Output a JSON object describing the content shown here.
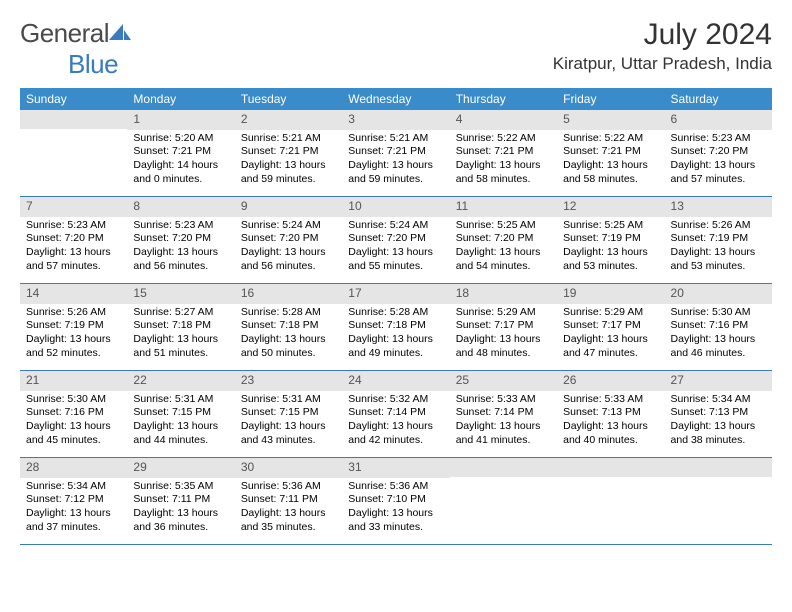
{
  "brand": {
    "part1": "General",
    "part2": "Blue",
    "color_gray": "#4a4a4a",
    "color_blue": "#3a7bbf"
  },
  "title": "July 2024",
  "location": "Kiratpur, Uttar Pradesh, India",
  "header_bg": "#3a8bc9",
  "header_fg": "#ffffff",
  "daynum_bg": "#e5e5e5",
  "daynum_fg": "#555555",
  "border_color": "#3a7bbf",
  "text_color": "#000000",
  "day_names": [
    "Sunday",
    "Monday",
    "Tuesday",
    "Wednesday",
    "Thursday",
    "Friday",
    "Saturday"
  ],
  "weeks": [
    [
      {
        "n": "",
        "sunrise": "",
        "sunset": "",
        "daylight": ""
      },
      {
        "n": "1",
        "sunrise": "Sunrise: 5:20 AM",
        "sunset": "Sunset: 7:21 PM",
        "daylight": "Daylight: 14 hours and 0 minutes."
      },
      {
        "n": "2",
        "sunrise": "Sunrise: 5:21 AM",
        "sunset": "Sunset: 7:21 PM",
        "daylight": "Daylight: 13 hours and 59 minutes."
      },
      {
        "n": "3",
        "sunrise": "Sunrise: 5:21 AM",
        "sunset": "Sunset: 7:21 PM",
        "daylight": "Daylight: 13 hours and 59 minutes."
      },
      {
        "n": "4",
        "sunrise": "Sunrise: 5:22 AM",
        "sunset": "Sunset: 7:21 PM",
        "daylight": "Daylight: 13 hours and 58 minutes."
      },
      {
        "n": "5",
        "sunrise": "Sunrise: 5:22 AM",
        "sunset": "Sunset: 7:21 PM",
        "daylight": "Daylight: 13 hours and 58 minutes."
      },
      {
        "n": "6",
        "sunrise": "Sunrise: 5:23 AM",
        "sunset": "Sunset: 7:20 PM",
        "daylight": "Daylight: 13 hours and 57 minutes."
      }
    ],
    [
      {
        "n": "7",
        "sunrise": "Sunrise: 5:23 AM",
        "sunset": "Sunset: 7:20 PM",
        "daylight": "Daylight: 13 hours and 57 minutes."
      },
      {
        "n": "8",
        "sunrise": "Sunrise: 5:23 AM",
        "sunset": "Sunset: 7:20 PM",
        "daylight": "Daylight: 13 hours and 56 minutes."
      },
      {
        "n": "9",
        "sunrise": "Sunrise: 5:24 AM",
        "sunset": "Sunset: 7:20 PM",
        "daylight": "Daylight: 13 hours and 56 minutes."
      },
      {
        "n": "10",
        "sunrise": "Sunrise: 5:24 AM",
        "sunset": "Sunset: 7:20 PM",
        "daylight": "Daylight: 13 hours and 55 minutes."
      },
      {
        "n": "11",
        "sunrise": "Sunrise: 5:25 AM",
        "sunset": "Sunset: 7:20 PM",
        "daylight": "Daylight: 13 hours and 54 minutes."
      },
      {
        "n": "12",
        "sunrise": "Sunrise: 5:25 AM",
        "sunset": "Sunset: 7:19 PM",
        "daylight": "Daylight: 13 hours and 53 minutes."
      },
      {
        "n": "13",
        "sunrise": "Sunrise: 5:26 AM",
        "sunset": "Sunset: 7:19 PM",
        "daylight": "Daylight: 13 hours and 53 minutes."
      }
    ],
    [
      {
        "n": "14",
        "sunrise": "Sunrise: 5:26 AM",
        "sunset": "Sunset: 7:19 PM",
        "daylight": "Daylight: 13 hours and 52 minutes."
      },
      {
        "n": "15",
        "sunrise": "Sunrise: 5:27 AM",
        "sunset": "Sunset: 7:18 PM",
        "daylight": "Daylight: 13 hours and 51 minutes."
      },
      {
        "n": "16",
        "sunrise": "Sunrise: 5:28 AM",
        "sunset": "Sunset: 7:18 PM",
        "daylight": "Daylight: 13 hours and 50 minutes."
      },
      {
        "n": "17",
        "sunrise": "Sunrise: 5:28 AM",
        "sunset": "Sunset: 7:18 PM",
        "daylight": "Daylight: 13 hours and 49 minutes."
      },
      {
        "n": "18",
        "sunrise": "Sunrise: 5:29 AM",
        "sunset": "Sunset: 7:17 PM",
        "daylight": "Daylight: 13 hours and 48 minutes."
      },
      {
        "n": "19",
        "sunrise": "Sunrise: 5:29 AM",
        "sunset": "Sunset: 7:17 PM",
        "daylight": "Daylight: 13 hours and 47 minutes."
      },
      {
        "n": "20",
        "sunrise": "Sunrise: 5:30 AM",
        "sunset": "Sunset: 7:16 PM",
        "daylight": "Daylight: 13 hours and 46 minutes."
      }
    ],
    [
      {
        "n": "21",
        "sunrise": "Sunrise: 5:30 AM",
        "sunset": "Sunset: 7:16 PM",
        "daylight": "Daylight: 13 hours and 45 minutes."
      },
      {
        "n": "22",
        "sunrise": "Sunrise: 5:31 AM",
        "sunset": "Sunset: 7:15 PM",
        "daylight": "Daylight: 13 hours and 44 minutes."
      },
      {
        "n": "23",
        "sunrise": "Sunrise: 5:31 AM",
        "sunset": "Sunset: 7:15 PM",
        "daylight": "Daylight: 13 hours and 43 minutes."
      },
      {
        "n": "24",
        "sunrise": "Sunrise: 5:32 AM",
        "sunset": "Sunset: 7:14 PM",
        "daylight": "Daylight: 13 hours and 42 minutes."
      },
      {
        "n": "25",
        "sunrise": "Sunrise: 5:33 AM",
        "sunset": "Sunset: 7:14 PM",
        "daylight": "Daylight: 13 hours and 41 minutes."
      },
      {
        "n": "26",
        "sunrise": "Sunrise: 5:33 AM",
        "sunset": "Sunset: 7:13 PM",
        "daylight": "Daylight: 13 hours and 40 minutes."
      },
      {
        "n": "27",
        "sunrise": "Sunrise: 5:34 AM",
        "sunset": "Sunset: 7:13 PM",
        "daylight": "Daylight: 13 hours and 38 minutes."
      }
    ],
    [
      {
        "n": "28",
        "sunrise": "Sunrise: 5:34 AM",
        "sunset": "Sunset: 7:12 PM",
        "daylight": "Daylight: 13 hours and 37 minutes."
      },
      {
        "n": "29",
        "sunrise": "Sunrise: 5:35 AM",
        "sunset": "Sunset: 7:11 PM",
        "daylight": "Daylight: 13 hours and 36 minutes."
      },
      {
        "n": "30",
        "sunrise": "Sunrise: 5:36 AM",
        "sunset": "Sunset: 7:11 PM",
        "daylight": "Daylight: 13 hours and 35 minutes."
      },
      {
        "n": "31",
        "sunrise": "Sunrise: 5:36 AM",
        "sunset": "Sunset: 7:10 PM",
        "daylight": "Daylight: 13 hours and 33 minutes."
      },
      {
        "n": "",
        "sunrise": "",
        "sunset": "",
        "daylight": ""
      },
      {
        "n": "",
        "sunrise": "",
        "sunset": "",
        "daylight": ""
      },
      {
        "n": "",
        "sunrise": "",
        "sunset": "",
        "daylight": ""
      }
    ]
  ]
}
